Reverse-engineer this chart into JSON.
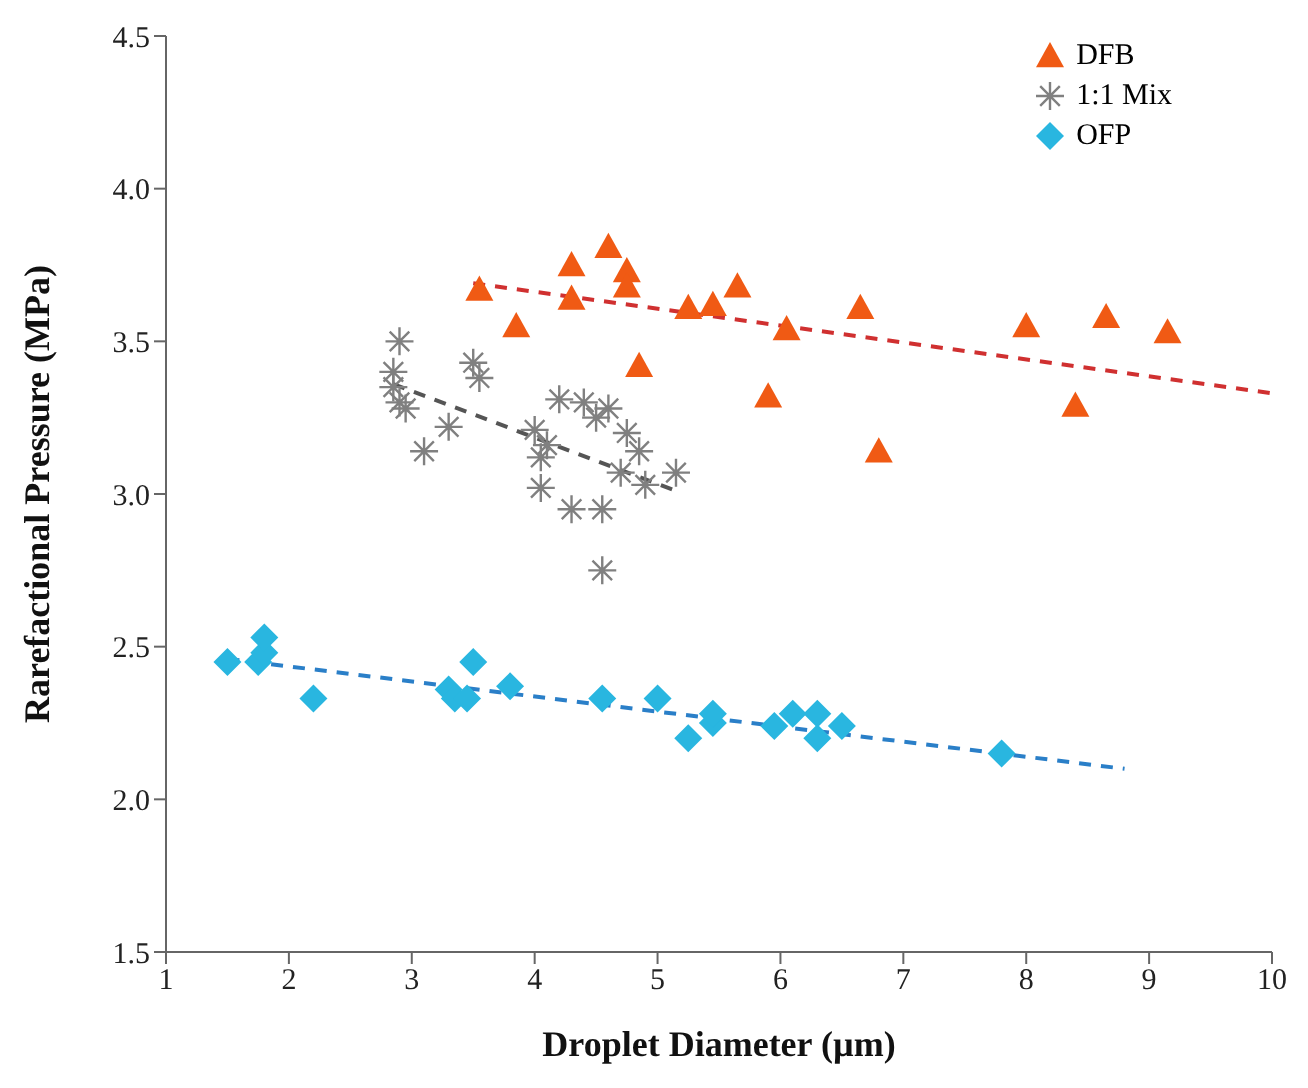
{
  "chart_data": {
    "type": "scatter",
    "xlabel": "Droplet Diameter (µm)",
    "ylabel": "Rarefactional Pressure (MPa)",
    "xlim": [
      1,
      10
    ],
    "xticks": [
      1,
      2,
      3,
      4,
      5,
      6,
      7,
      8,
      9,
      10
    ],
    "ylim": [
      1.5,
      4.5
    ],
    "yticks": [
      1.5,
      {
        "value": 2,
        "label": "2.0"
      },
      2.5,
      {
        "value": 3,
        "label": "3.0"
      },
      3.5,
      {
        "value": 4,
        "label": "4.0"
      },
      4.5
    ],
    "grid": false,
    "legend": "top right",
    "series": [
      {
        "name": "DFB",
        "color": "#f05a14",
        "marker": "triangle",
        "x": [
          3.55,
          3.85,
          4.3,
          4.3,
          4.6,
          4.75,
          4.75,
          4.85,
          5.25,
          5.45,
          5.65,
          5.9,
          6.05,
          6.65,
          6.8,
          8.0,
          8.4,
          8.65,
          9.15
        ],
        "values": [
          3.67,
          3.55,
          3.75,
          3.64,
          3.81,
          3.73,
          3.68,
          3.42,
          3.61,
          3.62,
          3.68,
          3.32,
          3.54,
          3.61,
          3.14,
          3.55,
          3.29,
          3.58,
          3.53
        ]
      },
      {
        "name": "1:1 Mix",
        "color": "#808080",
        "marker": "cross",
        "x": [
          2.85,
          2.9,
          2.85,
          2.9,
          2.95,
          3.1,
          3.3,
          3.5,
          3.55,
          4.0,
          4.05,
          4.05,
          4.1,
          4.2,
          4.3,
          4.4,
          4.5,
          4.55,
          4.55,
          4.6,
          4.7,
          4.75,
          4.85,
          4.9,
          5.15
        ],
        "values": [
          3.4,
          3.5,
          3.35,
          3.3,
          3.28,
          3.14,
          3.22,
          3.43,
          3.38,
          3.21,
          3.02,
          3.12,
          3.16,
          3.31,
          2.95,
          3.3,
          3.25,
          2.95,
          2.75,
          3.28,
          3.07,
          3.2,
          3.14,
          3.03,
          3.07
        ]
      },
      {
        "name": "OFP",
        "color": "#29b6e0",
        "marker": "diamond",
        "x": [
          1.5,
          1.75,
          1.8,
          1.8,
          2.2,
          3.3,
          3.35,
          3.45,
          3.5,
          3.8,
          4.55,
          5.0,
          5.25,
          5.45,
          5.45,
          5.95,
          6.1,
          6.3,
          6.3,
          6.5,
          7.8
        ],
        "values": [
          2.45,
          2.45,
          2.48,
          2.53,
          2.33,
          2.36,
          2.33,
          2.33,
          2.45,
          2.37,
          2.33,
          2.33,
          2.2,
          2.25,
          2.28,
          2.24,
          2.28,
          2.28,
          2.2,
          2.24,
          2.15
        ]
      },
      {
        "type": "line",
        "color": "#d03030",
        "line_style": "dashed",
        "marker": "none",
        "x": [
          3.5,
          10
        ],
        "values": [
          3.69,
          3.33
        ]
      },
      {
        "type": "line",
        "color": "#555555",
        "line_style": "dashed",
        "marker": "none",
        "x": [
          2.85,
          5.15
        ],
        "values": [
          3.36,
          3.01
        ]
      },
      {
        "type": "line",
        "color": "#2a7fc8",
        "line_style": "dashed",
        "marker": "none",
        "x": [
          1.5,
          8.8
        ],
        "values": [
          2.46,
          2.1
        ]
      }
    ]
  }
}
